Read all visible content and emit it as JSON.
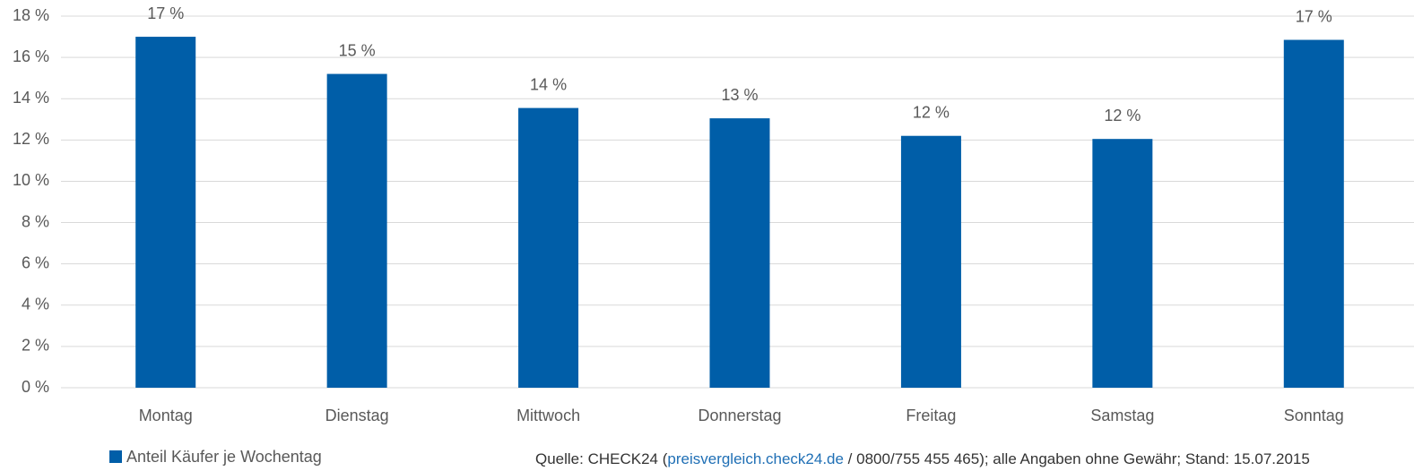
{
  "chart_data": {
    "type": "bar",
    "categories": [
      "Montag",
      "Dienstag",
      "Mittwoch",
      "Donnerstag",
      "Freitag",
      "Samstag",
      "Sonntag"
    ],
    "series": [
      {
        "name": "Anteil Käufer je Wochentag",
        "color": "#005ea8",
        "values": [
          17.0,
          15.2,
          13.55,
          13.05,
          12.2,
          12.05,
          16.85
        ],
        "value_labels": [
          "17 %",
          "15 %",
          "14 %",
          "13 %",
          "12 %",
          "12 %",
          "17 %"
        ]
      }
    ],
    "ylim": [
      0,
      18
    ],
    "yticks": [
      {
        "value": 0,
        "label": "0 %"
      },
      {
        "value": 2,
        "label": "2 %"
      },
      {
        "value": 4,
        "label": "4 %"
      },
      {
        "value": 6,
        "label": "6 %"
      },
      {
        "value": 8,
        "label": "8 %"
      },
      {
        "value": 10,
        "label": "10 %"
      },
      {
        "value": 12,
        "label": "12 %"
      },
      {
        "value": 14,
        "label": "14 %"
      },
      {
        "value": 16,
        "label": "16 %"
      },
      {
        "value": 18,
        "label": "18 %"
      }
    ],
    "grid": true,
    "legend": "bottom-left",
    "source": {
      "before": "Quelle: CHECK24 (",
      "link": "preisvergleich.check24.de",
      "after": " / 0800/755 455 465); alle Angaben ohne Gewähr; Stand: 15.07.2015"
    }
  }
}
